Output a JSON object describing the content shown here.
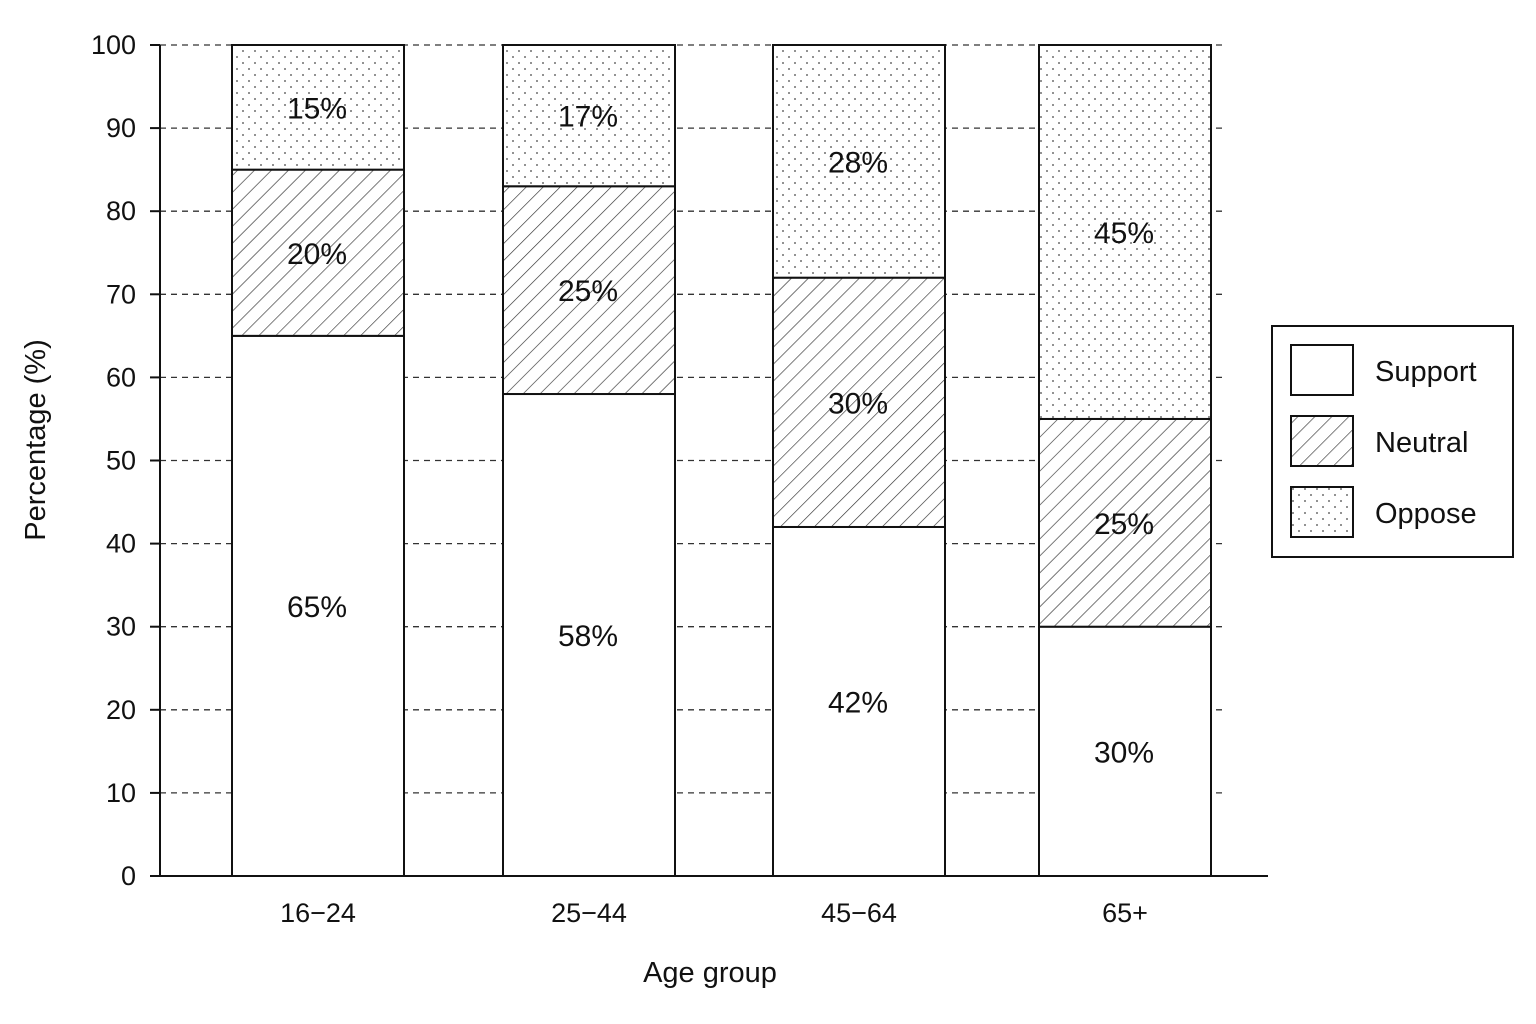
{
  "chart_data": {
    "type": "bar",
    "stacked": true,
    "categories": [
      "16−24",
      "25−44",
      "45−64",
      "65+"
    ],
    "series": [
      {
        "name": "Support",
        "values": [
          65,
          58,
          42,
          30
        ],
        "labels": [
          "65%",
          "58%",
          "42%",
          "30%"
        ],
        "pattern": "solid-white"
      },
      {
        "name": "Neutral",
        "values": [
          20,
          25,
          30,
          25
        ],
        "labels": [
          "20%",
          "25%",
          "30%",
          "25%"
        ],
        "pattern": "diagonal-hatch"
      },
      {
        "name": "Oppose",
        "values": [
          15,
          17,
          28,
          45
        ],
        "labels": [
          "15%",
          "17%",
          "28%",
          "45%"
        ],
        "pattern": "dots"
      }
    ],
    "xlabel": "Age group",
    "ylabel": "Percentage (%)",
    "ylim": [
      0,
      100
    ],
    "yticks": [
      "0",
      "10",
      "20",
      "30",
      "40",
      "50",
      "60",
      "70",
      "80",
      "90",
      "100"
    ],
    "grid": "horizontal-dashed",
    "legend_position": "right",
    "colors": {
      "stroke": "#111111",
      "fill": "#ffffff",
      "grid": "#333333"
    }
  }
}
